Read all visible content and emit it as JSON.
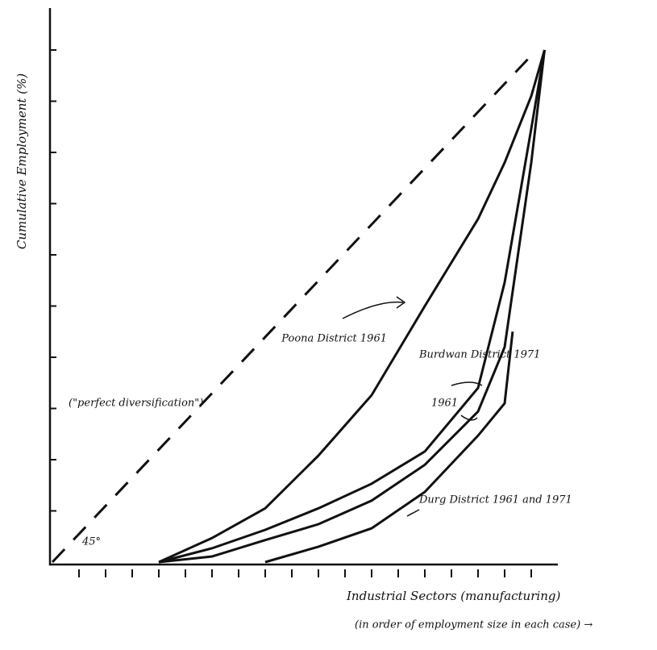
{
  "chart_data": {
    "type": "line",
    "ylabel": "Cumulative Employment (%)",
    "xlabel": "Industrial Sectors (manufacturing)",
    "xlabel_note": "(in order of employment size in each case) →",
    "annotations": [
      "45°"
    ],
    "xlim": [
      0,
      19
    ],
    "ylim": [
      0,
      100
    ],
    "xticks": [
      1,
      2,
      3,
      4,
      5,
      6,
      7,
      8,
      9,
      10,
      11,
      12,
      13,
      14,
      15,
      16,
      17,
      18
    ],
    "yticks": [
      10,
      20,
      30,
      40,
      50,
      60,
      70,
      80,
      90,
      100
    ],
    "series": [
      {
        "name": "(\"perfect diversification\")",
        "color": "#111111",
        "dashed": true,
        "x": [
          0,
          18.2
        ],
        "values": [
          0,
          100
        ]
      },
      {
        "name": "Poona District 1961",
        "color": "#111111",
        "x": [
          4,
          6,
          8,
          10,
          12,
          14,
          16,
          17,
          18,
          18.5
        ],
        "values": [
          0,
          4.7,
          10.5,
          20.8,
          32.6,
          50,
          67,
          78,
          91,
          100
        ]
      },
      {
        "name": "Burdwan District 1971",
        "color": "#111111",
        "x": [
          4,
          6,
          8,
          10,
          12,
          14,
          16,
          17,
          18,
          18.5
        ],
        "values": [
          0,
          2.7,
          6.3,
          10.5,
          15.3,
          21.6,
          34,
          54.6,
          84.6,
          100
        ]
      },
      {
        "name": "1961",
        "color": "#111111",
        "x": [
          4,
          6,
          8,
          10,
          12,
          14,
          16,
          17,
          18,
          18.5
        ],
        "values": [
          0,
          1.1,
          4.3,
          7.4,
          12,
          19,
          29.4,
          42,
          78,
          100
        ]
      },
      {
        "name": "Durg District 1961 and 1971",
        "color": "#111111",
        "x": [
          8,
          10,
          12,
          14,
          16,
          17,
          17.3
        ],
        "values": [
          0,
          3,
          6.6,
          13.7,
          24.7,
          31,
          45
        ]
      }
    ]
  }
}
